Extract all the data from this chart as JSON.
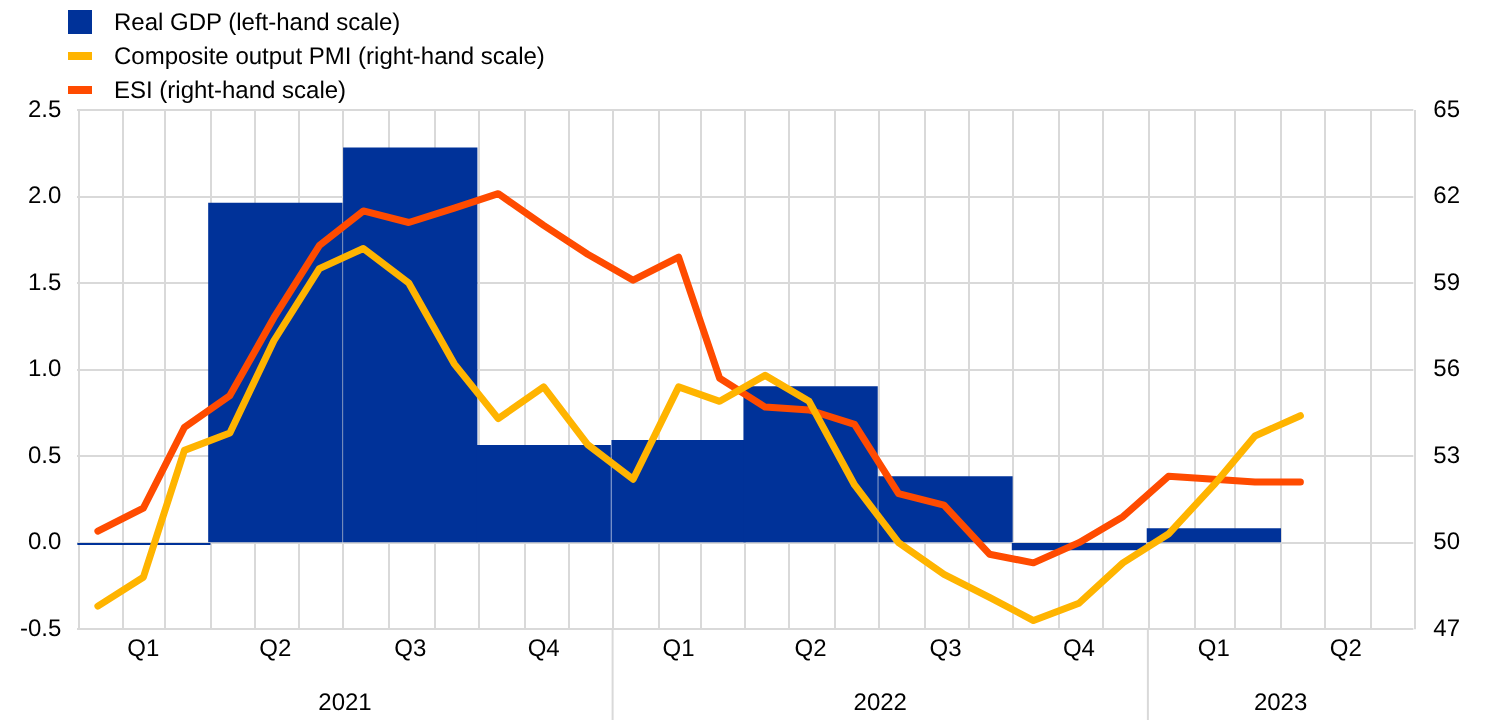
{
  "chart_data": {
    "type": "bar",
    "legend": "top left",
    "grid": true,
    "ylim": [
      -0.5,
      2.5
    ],
    "yticks": [
      -0.5,
      {
        "value": 0,
        "label": "0.0"
      },
      0.5,
      {
        "value": 1,
        "label": "1.0"
      },
      1.5,
      {
        "value": 2,
        "label": "2.0"
      },
      2.5
    ],
    "y2lim": [
      47,
      65
    ],
    "y2ticks": [
      47,
      50,
      53,
      56,
      59,
      62,
      65
    ],
    "xlim": [
      "2021-01-01",
      "2023-07-01"
    ],
    "xticks": [
      {
        "value": "2021-01-01",
        "label": null
      },
      {
        "value": "2021-02-01",
        "label": null
      },
      {
        "value": "2021-03-01",
        "label": null
      },
      {
        "value": "2021-04-01",
        "label": null
      },
      {
        "value": "2021-05-01",
        "label": null
      },
      {
        "value": "2021-06-01",
        "label": null
      },
      {
        "value": "2021-07-01",
        "label": null
      },
      {
        "value": "2021-08-01",
        "label": null
      },
      {
        "value": "2021-09-01",
        "label": null
      },
      {
        "value": "2021-10-01",
        "label": null
      },
      {
        "value": "2021-11-01",
        "label": null
      },
      {
        "value": "2021-12-01",
        "label": null
      },
      {
        "value": "2022-01-01",
        "label": null
      },
      {
        "value": "2022-02-01",
        "label": null
      },
      {
        "value": "2022-03-01",
        "label": null
      },
      {
        "value": "2022-04-01",
        "label": null
      },
      {
        "value": "2022-05-01",
        "label": null
      },
      {
        "value": "2022-06-01",
        "label": null
      },
      {
        "value": "2022-07-01",
        "label": null
      },
      {
        "value": "2022-08-01",
        "label": null
      },
      {
        "value": "2022-09-01",
        "label": null
      },
      {
        "value": "2022-10-01",
        "label": null
      },
      {
        "value": "2022-11-01",
        "label": null
      },
      {
        "value": "2022-12-01",
        "label": null
      },
      {
        "value": "2023-01-01",
        "label": null
      },
      {
        "value": "2023-02-01",
        "label": null
      },
      {
        "value": "2023-03-01",
        "label": null
      },
      {
        "value": "2023-04-01",
        "label": null
      },
      {
        "value": "2023-05-01",
        "label": null
      },
      {
        "value": "2023-06-01",
        "label": null
      },
      {
        "value": "2023-07-01",
        "label": null
      },
      {
        "value": "2021-02-15",
        "label": "Q1"
      },
      {
        "value": "2021-05-16",
        "label": "Q2"
      },
      {
        "value": "2021-08-16",
        "label": "Q3"
      },
      {
        "value": "2021-11-15",
        "label": "Q4"
      },
      {
        "value": "2022-02-15",
        "label": "Q1"
      },
      {
        "value": "2022-05-16",
        "label": "Q2"
      },
      {
        "value": "2022-08-16",
        "label": "Q3"
      },
      {
        "value": "2022-11-15",
        "label": "Q4"
      },
      {
        "value": "2023-02-15",
        "label": "Q1"
      },
      {
        "value": "2023-05-16",
        "label": "Q2"
      }
    ],
    "annotations": [
      "2021",
      "2022",
      "2023"
    ],
    "series": [
      {
        "name": "Real GDP (left-hand scale)",
        "color": "#003299",
        "x": [
          "2021-02-15",
          "2021-05-16",
          "2021-08-16",
          "2021-11-15",
          "2022-02-15",
          "2022-05-16",
          "2022-08-16",
          "2022-11-15",
          "2023-02-15"
        ],
        "values": [
          -0.01,
          1.96,
          2.28,
          0.56,
          0.59,
          0.9,
          0.38,
          -0.04,
          0.08
        ]
      },
      {
        "name": "Composite output PMI (right-hand scale)",
        "type": "line",
        "axis": "y2",
        "color": "#ffb400",
        "x": [
          "2021-01-15",
          "2021-02-15",
          "2021-03-15",
          "2021-04-15",
          "2021-05-15",
          "2021-06-15",
          "2021-07-15",
          "2021-08-15",
          "2021-09-15",
          "2021-10-15",
          "2021-11-15",
          "2021-12-15",
          "2022-01-15",
          "2022-02-15",
          "2022-03-15",
          "2022-04-15",
          "2022-05-15",
          "2022-06-15",
          "2022-07-15",
          "2022-08-15",
          "2022-09-15",
          "2022-10-15",
          "2022-11-15",
          "2022-12-15",
          "2023-01-15",
          "2023-02-15",
          "2023-03-15",
          "2023-04-15"
        ],
        "values": [
          47.8,
          48.8,
          53.2,
          53.8,
          57.0,
          59.5,
          60.2,
          59.0,
          56.2,
          54.3,
          55.4,
          53.4,
          52.2,
          55.4,
          54.9,
          55.8,
          54.9,
          52.0,
          50.0,
          48.9,
          48.1,
          47.3,
          47.9,
          49.3,
          50.3,
          52.0,
          53.7,
          54.4
        ]
      },
      {
        "name": "ESI (right-hand scale)",
        "type": "line",
        "axis": "y2",
        "color": "#ff4b00",
        "x": [
          "2021-01-15",
          "2021-02-15",
          "2021-03-15",
          "2021-04-15",
          "2021-05-15",
          "2021-06-15",
          "2021-07-15",
          "2021-08-15",
          "2021-09-15",
          "2021-10-15",
          "2021-11-15",
          "2021-12-15",
          "2022-01-15",
          "2022-02-15",
          "2022-03-15",
          "2022-04-15",
          "2022-05-15",
          "2022-06-15",
          "2022-07-15",
          "2022-08-15",
          "2022-09-15",
          "2022-10-15",
          "2022-11-15",
          "2022-12-15",
          "2023-01-15",
          "2023-02-15",
          "2023-03-15",
          "2023-04-15"
        ],
        "values": [
          50.4,
          51.2,
          54.0,
          55.1,
          57.8,
          60.3,
          61.5,
          61.1,
          61.6,
          62.1,
          61.0,
          60.0,
          59.1,
          59.9,
          55.7,
          54.7,
          54.6,
          54.1,
          51.7,
          51.3,
          49.6,
          49.3,
          50.0,
          50.9,
          52.3,
          52.2,
          52.1,
          52.1
        ]
      }
    ]
  }
}
